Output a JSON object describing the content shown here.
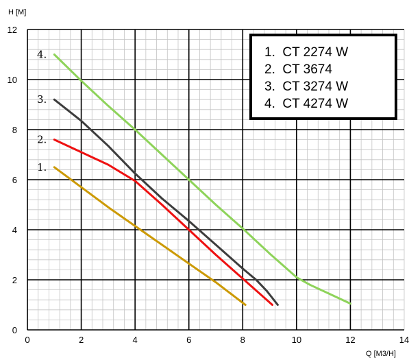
{
  "chart_data": {
    "type": "line",
    "title": "",
    "xlabel": "Q [M3/H]",
    "ylabel": "H [M]",
    "xlim": [
      0,
      14
    ],
    "ylim": [
      0,
      12
    ],
    "x_ticks": [
      "0",
      "2",
      "4",
      "6",
      "8",
      "10",
      "12",
      "14"
    ],
    "y_ticks": [
      "0",
      "2",
      "4",
      "6",
      "8",
      "10",
      "12"
    ],
    "grid": true,
    "legend_position": "top-right",
    "legend": [
      "1.  CT 2274 W",
      "2.  CT 3674",
      "3.  CT 3274 W",
      "4.  CT 4274 W"
    ],
    "series": [
      {
        "name": "CT 2274 W",
        "label": "1.",
        "color": "#cc9a06",
        "x": [
          1,
          2,
          3,
          4,
          5,
          6,
          7,
          8.1
        ],
        "y": [
          6.5,
          5.7,
          4.9,
          4.15,
          3.4,
          2.65,
          1.9,
          1.0
        ]
      },
      {
        "name": "CT 3674",
        "label": "2.",
        "color": "#ee1111",
        "x": [
          1,
          2,
          3,
          4,
          5,
          6,
          7,
          8,
          9.1
        ],
        "y": [
          7.6,
          7.1,
          6.6,
          5.95,
          5.0,
          4.0,
          3.0,
          2.05,
          1.0
        ]
      },
      {
        "name": "CT 3274 W",
        "label": "3.",
        "color": "#3d3d3d",
        "x": [
          1,
          2,
          3,
          4,
          5,
          6,
          7,
          8,
          8.5,
          8.9,
          9.3
        ],
        "y": [
          9.2,
          8.35,
          7.35,
          6.25,
          5.25,
          4.35,
          3.4,
          2.45,
          2.0,
          1.55,
          1.0
        ]
      },
      {
        "name": "CT 4274 W",
        "label": "4.",
        "color": "#8ed35a",
        "x": [
          1,
          2,
          3,
          4,
          5,
          6,
          7,
          8,
          9,
          10,
          10.5,
          11,
          12
        ],
        "y": [
          11.0,
          9.95,
          8.95,
          8.0,
          7.0,
          6.0,
          5.0,
          4.05,
          3.05,
          2.1,
          1.8,
          1.55,
          1.05
        ]
      }
    ]
  }
}
